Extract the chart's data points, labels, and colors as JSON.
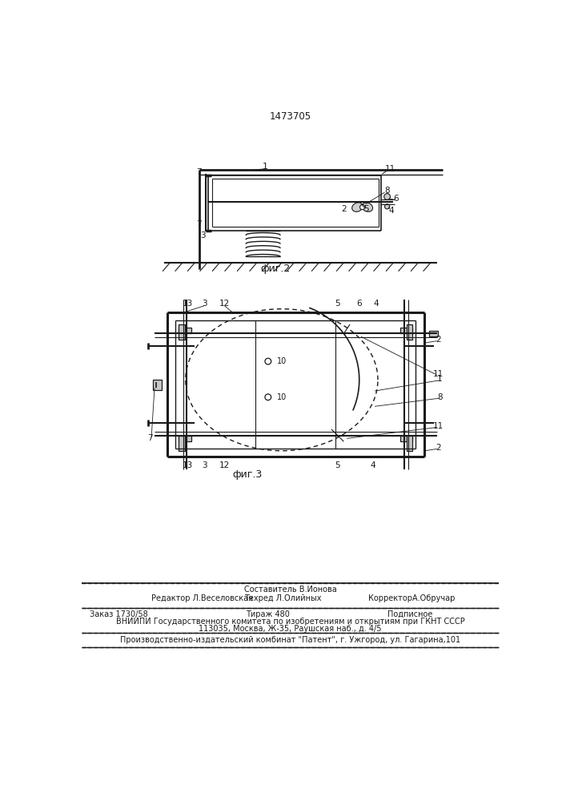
{
  "patent_number": "1473705",
  "bg_color": "#ffffff",
  "line_color": "#1a1a1a",
  "fig2_label": "фиг.2",
  "fig3_label": "фиг.3",
  "footer_line1_center_top": "Составитель В.Ионова",
  "footer_line1_left": "Редактор Л.Веселовская",
  "footer_line1_center": "Техред Л.Олийных",
  "footer_line1_right": "КорректорА.Обручар",
  "footer_line2_col1": "Заказ 1730/58",
  "footer_line2_col2": "Тираж 480",
  "footer_line2_col3": "Подписное",
  "footer_line3": "ВНИИПИ Государственного комитета по изобретениям и открытиям при ГКНТ СССР",
  "footer_line4": "113035, Москва, Ж-35, Раушская наб., д. 4/5",
  "footer_line5": "Производственно-издательский комбинат \"Патент\", г. Ужгород, ул. Гагарина,101"
}
